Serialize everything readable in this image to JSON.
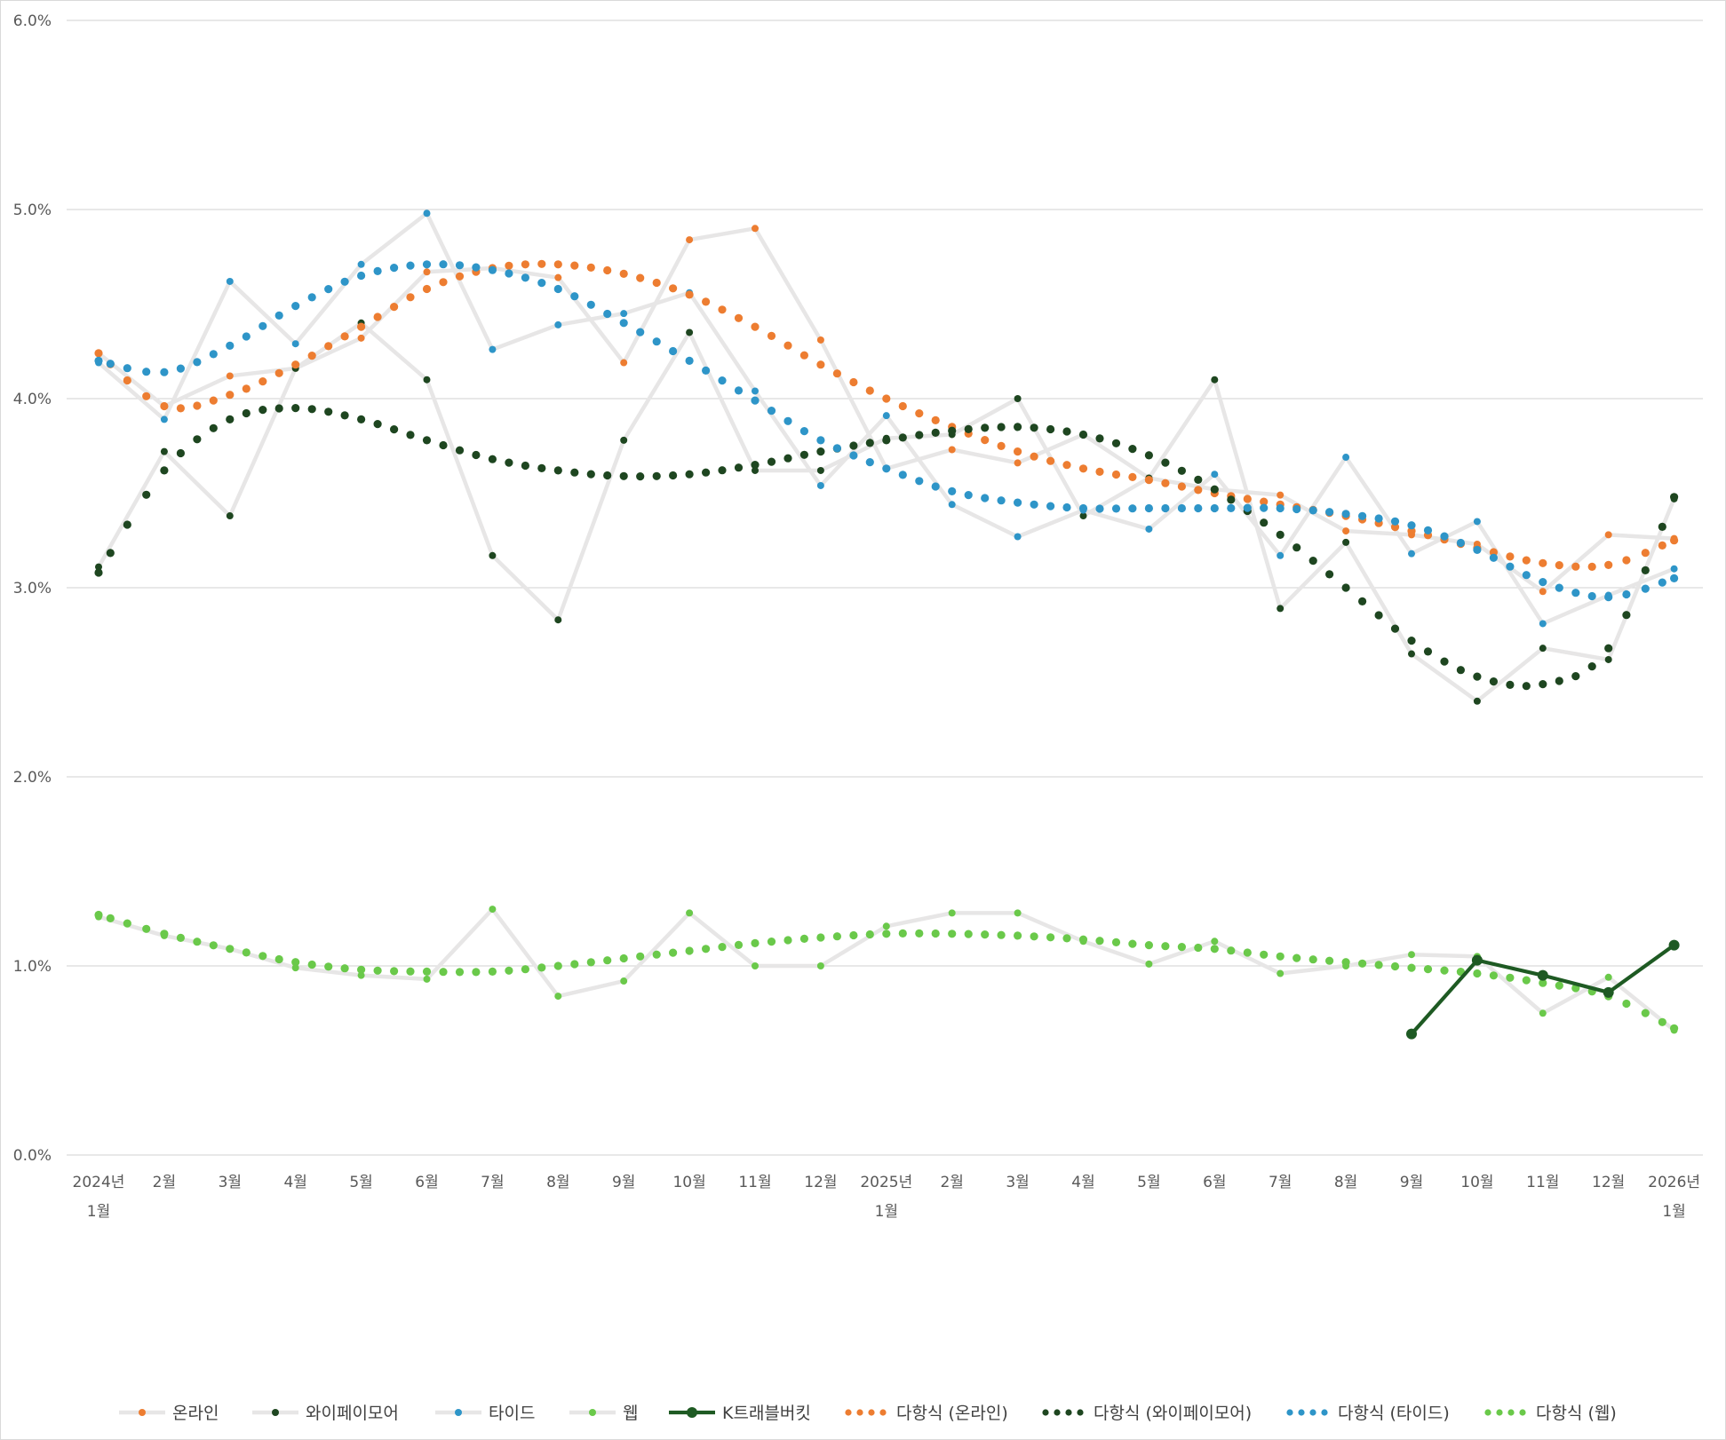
{
  "chart_data": {
    "type": "line",
    "title": "",
    "xlabel": "",
    "ylabel": "",
    "ylim": [
      0,
      0.06
    ],
    "y_ticks": [
      "0.0%",
      "1.0%",
      "2.0%",
      "3.0%",
      "4.0%",
      "5.0%",
      "6.0%"
    ],
    "y_tick_values": [
      0,
      0.01,
      0.02,
      0.03,
      0.04,
      0.05,
      0.06
    ],
    "legend_position": "bottom",
    "x_ticks": [
      {
        "label": "2024년",
        "sub": "1월",
        "month": 0
      },
      {
        "label": "2월",
        "month": 1
      },
      {
        "label": "3월",
        "month": 2
      },
      {
        "label": "4월",
        "month": 3
      },
      {
        "label": "5월",
        "month": 4
      },
      {
        "label": "6월",
        "month": 5
      },
      {
        "label": "7월",
        "month": 6
      },
      {
        "label": "8월",
        "month": 7
      },
      {
        "label": "9월",
        "month": 8
      },
      {
        "label": "10월",
        "month": 9
      },
      {
        "label": "11월",
        "month": 10
      },
      {
        "label": "12월",
        "month": 11
      },
      {
        "label": "2025년",
        "sub": "1월",
        "month": 12
      },
      {
        "label": "2월",
        "month": 13
      },
      {
        "label": "3월",
        "month": 14
      },
      {
        "label": "4월",
        "month": 15
      },
      {
        "label": "5월",
        "month": 16
      },
      {
        "label": "6월",
        "month": 17
      },
      {
        "label": "7월",
        "month": 18
      },
      {
        "label": "8월",
        "month": 19
      },
      {
        "label": "9월",
        "month": 20
      },
      {
        "label": "10월",
        "month": 21
      },
      {
        "label": "11월",
        "month": 22
      },
      {
        "label": "12월",
        "month": 23
      },
      {
        "label": "2026년",
        "sub": "1월",
        "month": 24
      }
    ],
    "series": [
      {
        "name": "온라인",
        "kind": "raw",
        "line_color": "#e7e6e6",
        "marker_color": "#ed7d31",
        "values": [
          0.0424,
          0.0396,
          0.0412,
          0.0416,
          0.0432,
          0.0467,
          0.0469,
          0.0464,
          0.0419,
          0.0484,
          0.049,
          0.0431,
          0.0363,
          0.0373,
          0.0366,
          0.0381,
          0.0358,
          0.0352,
          0.0349,
          0.033,
          0.0328,
          0.0323,
          0.0298,
          0.0328,
          0.0326
        ]
      },
      {
        "name": "와이페이모어",
        "kind": "raw",
        "line_color": "#e7e6e6",
        "marker_color": "#1e4620",
        "values": [
          0.0311,
          0.0372,
          0.0338,
          0.0416,
          0.044,
          0.041,
          0.0317,
          0.0283,
          0.0378,
          0.0435,
          0.0362,
          0.0362,
          0.0379,
          0.0381,
          0.04,
          0.0338,
          0.0358,
          0.041,
          0.0289,
          0.0324,
          0.0265,
          0.024,
          0.0268,
          0.0262,
          0.0347
        ]
      },
      {
        "name": "타이드",
        "kind": "raw",
        "line_color": "#e7e6e6",
        "marker_color": "#2e95c8",
        "values": [
          0.0419,
          0.0389,
          0.0462,
          0.0429,
          0.0471,
          0.0498,
          0.0426,
          0.0439,
          0.0445,
          0.0456,
          0.0404,
          0.0354,
          0.0391,
          0.0344,
          0.0327,
          0.0341,
          0.0331,
          0.036,
          0.0317,
          0.0369,
          0.0318,
          0.0335,
          0.0281,
          0.0296,
          0.031
        ]
      },
      {
        "name": "웹",
        "kind": "raw",
        "line_color": "#e7e6e6",
        "marker_color": "#6ac94a",
        "values": [
          0.0126,
          0.0116,
          0.0109,
          0.0099,
          0.0095,
          0.0093,
          0.013,
          0.0084,
          0.0092,
          0.0128,
          0.01,
          0.01,
          0.0121,
          0.0128,
          0.0128,
          0.0113,
          0.0101,
          0.0113,
          0.0096,
          0.01,
          0.0106,
          0.0105,
          0.0075,
          0.0094,
          0.0066
        ]
      },
      {
        "name": "K트래블버킷",
        "kind": "main",
        "line_color": "#1e5a23",
        "marker_color": "#1e5a23",
        "x_start": 20,
        "values": [
          0.0064,
          0.0103,
          0.0095,
          0.0086,
          0.0111
        ]
      },
      {
        "name": "다항식 (온라인)",
        "kind": "trend",
        "color": "#ed7d31",
        "values": [
          0.0424,
          0.0396,
          0.0402,
          0.0418,
          0.0438,
          0.0458,
          0.0469,
          0.0471,
          0.0466,
          0.0455,
          0.0438,
          0.0418,
          0.04,
          0.0385,
          0.0372,
          0.0363,
          0.0357,
          0.035,
          0.0344,
          0.0338,
          0.033,
          0.0321,
          0.0313,
          0.0312,
          0.0325
        ]
      },
      {
        "name": "다항식 (와이페이모어)",
        "kind": "trend",
        "color": "#1e4620",
        "values": [
          0.0308,
          0.0362,
          0.0389,
          0.0395,
          0.0389,
          0.0378,
          0.0368,
          0.0362,
          0.0359,
          0.036,
          0.0365,
          0.0372,
          0.0378,
          0.0383,
          0.0385,
          0.0381,
          0.037,
          0.0352,
          0.0328,
          0.03,
          0.0272,
          0.0253,
          0.0249,
          0.0268,
          0.0348
        ]
      },
      {
        "name": "다항식 (타이드)",
        "kind": "trend",
        "color": "#2e95c8",
        "values": [
          0.042,
          0.0414,
          0.0428,
          0.0449,
          0.0465,
          0.0471,
          0.0468,
          0.0458,
          0.044,
          0.042,
          0.0399,
          0.0378,
          0.0363,
          0.0351,
          0.0345,
          0.0342,
          0.0342,
          0.0342,
          0.0342,
          0.0339,
          0.0333,
          0.032,
          0.0303,
          0.0295,
          0.0305
        ]
      },
      {
        "name": "다항식 (웹)",
        "kind": "trend",
        "color": "#6ac94a",
        "values": [
          0.0127,
          0.0117,
          0.0109,
          0.0102,
          0.0098,
          0.0097,
          0.0097,
          0.01,
          0.0104,
          0.0108,
          0.0112,
          0.0115,
          0.0117,
          0.0117,
          0.0116,
          0.0114,
          0.0111,
          0.0109,
          0.0105,
          0.0102,
          0.0099,
          0.0096,
          0.0091,
          0.0084,
          0.0067
        ]
      }
    ]
  }
}
